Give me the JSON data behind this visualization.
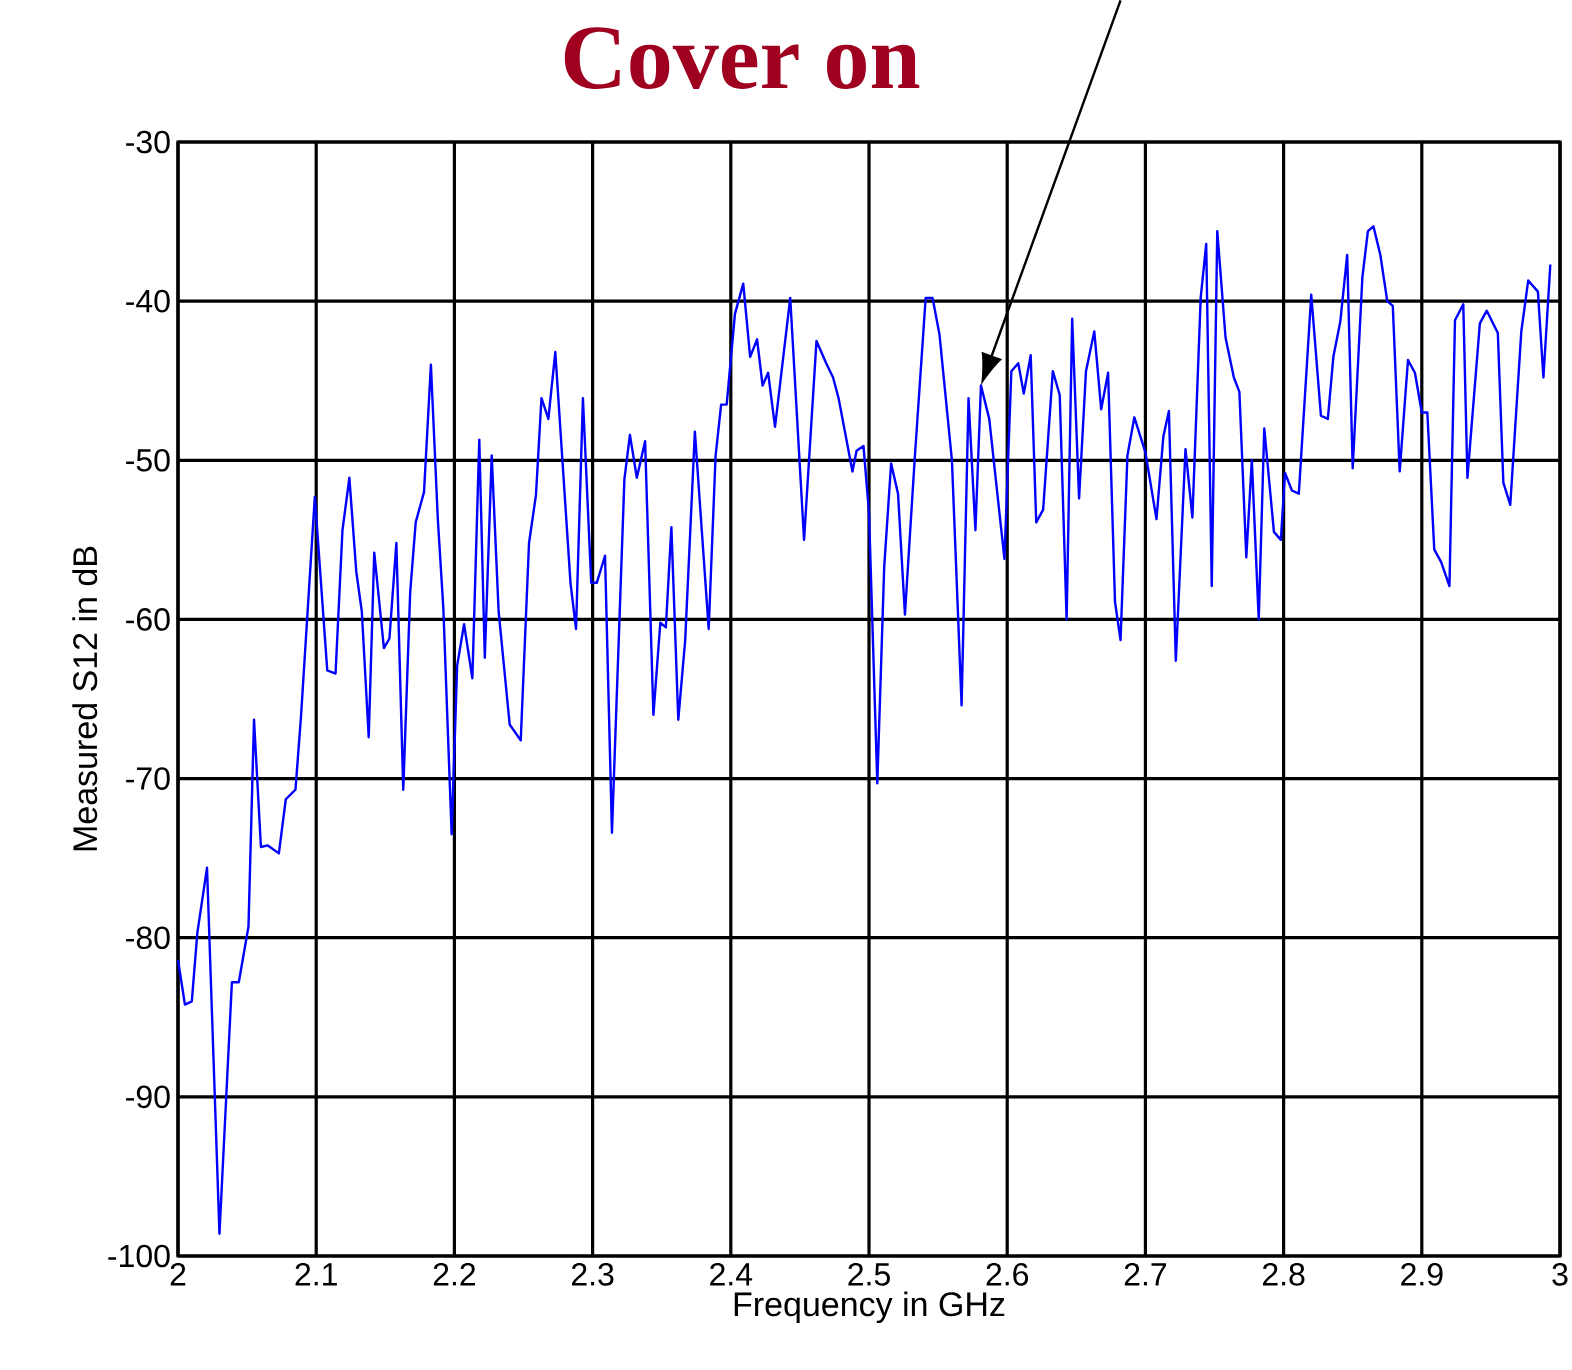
{
  "chart_data": {
    "type": "line",
    "title": "Cover on",
    "xlabel": "Frequency in GHz",
    "ylabel": "Measured S12 in dB",
    "x": [
      2.0,
      2.005,
      2.01,
      2.014,
      2.021,
      2.03,
      2.039,
      2.044,
      2.051,
      2.055,
      2.06,
      2.065,
      2.073,
      2.078,
      2.085,
      2.089,
      2.099,
      2.108,
      2.114,
      2.119,
      2.124,
      2.129,
      2.133,
      2.138,
      2.142,
      2.149,
      2.153,
      2.158,
      2.163,
      2.168,
      2.172,
      2.178,
      2.183,
      2.188,
      2.192,
      2.198,
      2.202,
      2.207,
      2.213,
      2.218,
      2.222,
      2.227,
      2.232,
      2.24,
      2.248,
      2.254,
      2.259,
      2.263,
      2.268,
      2.273,
      2.284,
      2.288,
      2.293,
      2.299,
      2.303,
      2.309,
      2.314,
      2.323,
      2.327,
      2.332,
      2.338,
      2.344,
      2.349,
      2.353,
      2.357,
      2.362,
      2.367,
      2.374,
      2.384,
      2.389,
      2.393,
      2.397,
      2.403,
      2.409,
      2.414,
      2.419,
      2.423,
      2.427,
      2.432,
      2.443,
      2.453,
      2.462,
      2.469,
      2.474,
      2.478,
      2.483,
      2.488,
      2.491,
      2.496,
      2.5,
      2.506,
      2.511,
      2.516,
      2.521,
      2.526,
      2.533,
      2.541,
      2.546,
      2.551,
      2.56,
      2.567,
      2.572,
      2.577,
      2.581,
      2.587,
      2.598,
      2.603,
      2.608,
      2.612,
      2.617,
      2.621,
      2.626,
      2.633,
      2.638,
      2.643,
      2.647,
      2.652,
      2.657,
      2.663,
      2.668,
      2.673,
      2.678,
      2.682,
      2.687,
      2.692,
      2.7,
      2.708,
      2.713,
      2.717,
      2.722,
      2.729,
      2.734,
      2.74,
      2.744,
      2.748,
      2.752,
      2.758,
      2.764,
      2.768,
      2.773,
      2.777,
      2.782,
      2.786,
      2.793,
      2.798,
      2.801,
      2.806,
      2.811,
      2.82,
      2.827,
      2.832,
      2.836,
      2.841,
      2.846,
      2.85,
      2.857,
      2.861,
      2.865,
      2.87,
      2.875,
      2.879,
      2.884,
      2.89,
      2.895,
      2.9,
      2.904,
      2.909,
      2.914,
      2.92,
      2.924,
      2.93,
      2.933,
      2.942,
      2.947,
      2.955,
      2.959,
      2.964,
      2.972,
      2.977,
      2.984,
      2.988,
      2.993
    ],
    "series": [
      {
        "color": "#0000ff",
        "values": [
          -81.4,
          -84.2,
          -84.0,
          -79.7,
          -75.6,
          -98.6,
          -82.8,
          -82.8,
          -79.3,
          -66.3,
          -74.3,
          -74.2,
          -74.7,
          -71.3,
          -70.7,
          -66.1,
          -52.3,
          -63.2,
          -63.4,
          -54.4,
          -51.1,
          -57.0,
          -59.5,
          -67.4,
          -55.8,
          -61.8,
          -61.2,
          -55.2,
          -70.7,
          -58.3,
          -53.9,
          -52.0,
          -44.0,
          -53.7,
          -59.3,
          -73.5,
          -62.9,
          -60.3,
          -63.7,
          -48.7,
          -62.4,
          -49.7,
          -59.5,
          -66.6,
          -67.6,
          -55.2,
          -52.2,
          -46.1,
          -47.4,
          -43.2,
          -57.7,
          -60.6,
          -46.1,
          -57.7,
          -57.7,
          -56.0,
          -73.4,
          -51.2,
          -48.4,
          -51.1,
          -48.8,
          -66.0,
          -60.2,
          -60.5,
          -54.2,
          -66.3,
          -61.3,
          -48.2,
          -60.6,
          -49.7,
          -46.5,
          -46.5,
          -40.8,
          -38.9,
          -43.5,
          -42.4,
          -45.3,
          -44.5,
          -47.9,
          -39.8,
          -55.0,
          -42.5,
          -43.9,
          -44.8,
          -46.1,
          -48.4,
          -50.7,
          -49.4,
          -49.1,
          -53.3,
          -70.3,
          -56.7,
          -50.2,
          -52.1,
          -59.7,
          -50.0,
          -39.8,
          -39.8,
          -42.1,
          -50.0,
          -65.4,
          -46.1,
          -54.4,
          -45.3,
          -47.4,
          -56.2,
          -44.4,
          -43.9,
          -45.8,
          -43.4,
          -53.9,
          -53.1,
          -44.4,
          -45.9,
          -60.0,
          -41.1,
          -52.4,
          -44.4,
          -41.9,
          -46.8,
          -44.5,
          -58.9,
          -61.3,
          -49.7,
          -47.3,
          -49.5,
          -53.7,
          -48.5,
          -46.9,
          -62.6,
          -49.3,
          -53.6,
          -39.8,
          -36.4,
          -57.9,
          -35.6,
          -42.3,
          -44.8,
          -45.7,
          -56.1,
          -50.0,
          -60.0,
          -48.0,
          -54.5,
          -55.0,
          -50.8,
          -51.9,
          -52.1,
          -39.6,
          -47.2,
          -47.4,
          -43.5,
          -41.3,
          -37.1,
          -50.5,
          -38.5,
          -35.6,
          -35.3,
          -37.1,
          -40.0,
          -40.3,
          -50.7,
          -43.7,
          -44.5,
          -47.0,
          -47.0,
          -55.6,
          -56.4,
          -57.9,
          -41.2,
          -40.2,
          -51.1,
          -41.4,
          -40.6,
          -42.0,
          -51.4,
          -52.8,
          -41.9,
          -38.7,
          -39.4,
          -44.8,
          -37.7
        ]
      }
    ],
    "xlim": [
      2,
      3
    ],
    "ylim": [
      -100,
      -30
    ],
    "xticks": [
      2,
      2.1,
      2.2,
      2.3,
      2.4,
      2.5,
      2.6,
      2.7,
      2.8,
      2.9,
      3
    ],
    "yticks": [
      -100,
      -90,
      -80,
      -70,
      -60,
      -50,
      -40,
      -30
    ],
    "grid": true
  }
}
